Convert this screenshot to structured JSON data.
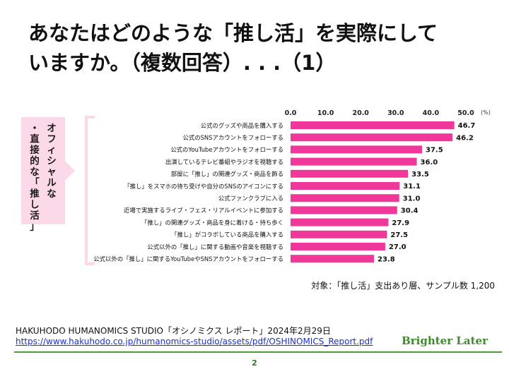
{
  "title": {
    "line1": "あなたはどのような「推し活」を実際にして",
    "line2": "いますか。（複数回答）. . .（1）"
  },
  "colors": {
    "bar": "#f0389a",
    "group_box": "#fbd9e8",
    "group_text": "#1a1a1a"
  },
  "chart_data": {
    "type": "bar",
    "orientation": "horizontal",
    "unit": "(%)",
    "xlim": [
      0,
      50
    ],
    "x_ticks": [
      "0.0",
      "10.0",
      "20.0",
      "30.0",
      "40.0",
      "50.0"
    ],
    "grid": false,
    "group_label": "オフィシャルな・直接的な「推し活」",
    "categories": [
      "公式のグッズや商品を購入する",
      "公式のSNSアカウントをフォローする",
      "公式のYouTubeアカウントをフォローする",
      "出演しているテレビ番組やラジオを視聴する",
      "部屋に「推し」の関連グッズ・商品を飾る",
      "「推し」をスマホの待ち受けや自分のSNSのアイコンにする",
      "公式ファンクラブに入る",
      "近場で実施するライブ・フェス・リアルイベントに参加する",
      "「推し」の関連グッズ・商品を身に着ける・持ち歩く",
      "「推し」がコラボしている商品を購入する",
      "公式以外の「推し」に関する動画や音楽を視聴する",
      "公式以外の「推し」に関するYouTubeやSNSアカウントをフォローする"
    ],
    "values": [
      46.7,
      46.2,
      37.5,
      36.0,
      33.5,
      31.1,
      31.0,
      30.4,
      27.9,
      27.5,
      27.0,
      23.8
    ],
    "value_labels": [
      "46.7",
      "46.2",
      "37.5",
      "36.0",
      "33.5",
      "31.1",
      "31.0",
      "30.4",
      "27.9",
      "27.5",
      "27.0",
      "23.8"
    ]
  },
  "note": "対象：「推し活」支出あり層、サンプル数 1,200",
  "source": {
    "text": "HAKUHODO HUMANOMICS STUDIO「オシノミクス レポート」2024年2月29日",
    "url": "https://www.hakuhodo.co.jp/humanomics-studio/assets/pdf/OSHINOMICS_Report.pdf"
  },
  "brand": "Brighter Later",
  "page_number": "2"
}
